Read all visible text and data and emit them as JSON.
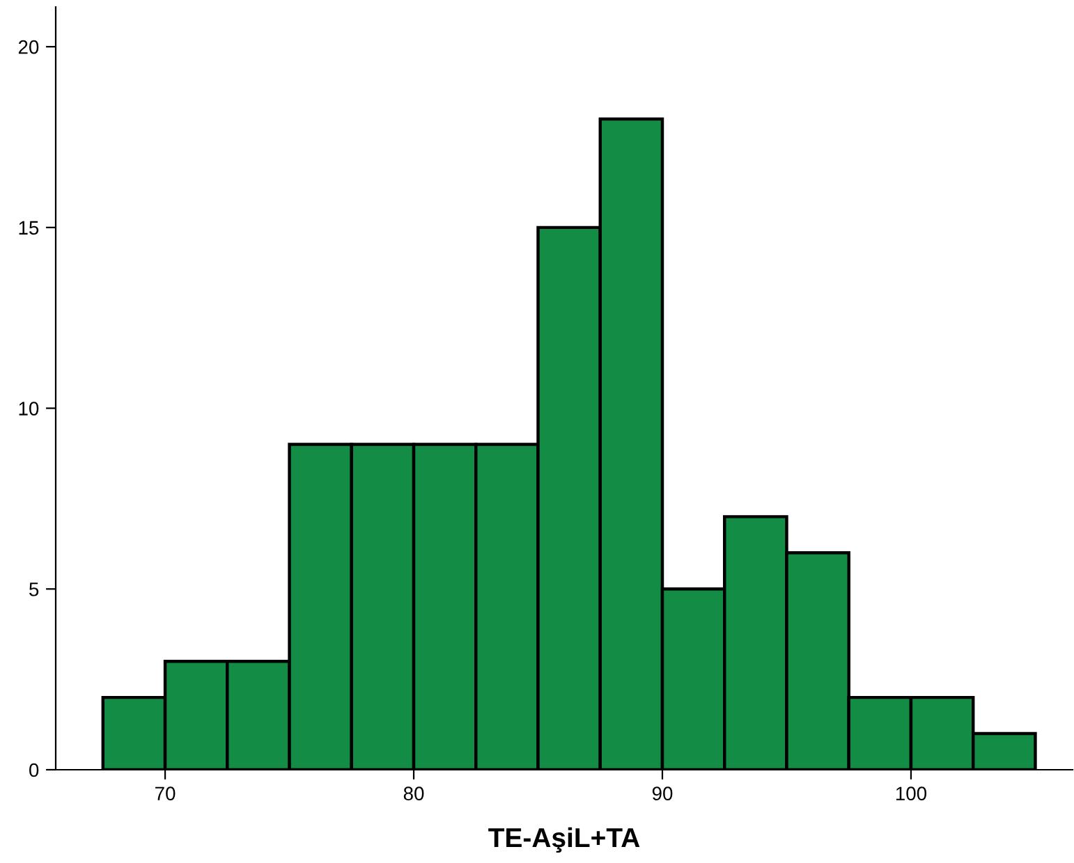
{
  "chart_data": {
    "type": "histogram",
    "xlabel": "TE-AşiL+TA",
    "bins": [
      67.5,
      70,
      72.5,
      75,
      77.5,
      80,
      82.5,
      85,
      87.5,
      90,
      92.5,
      95,
      97.5,
      100,
      102.5,
      105
    ],
    "values": [
      2,
      3,
      3,
      9,
      9,
      9,
      9,
      15,
      18,
      5,
      7,
      6,
      2,
      2,
      1
    ],
    "color": "#138d46",
    "xlim": [
      65.6,
      106.5
    ],
    "xticks": [
      70,
      80,
      90,
      100
    ],
    "ylim": [
      0,
      21.1
    ],
    "yticks": [
      0,
      5,
      10,
      15,
      20
    ],
    "grid": false
  }
}
